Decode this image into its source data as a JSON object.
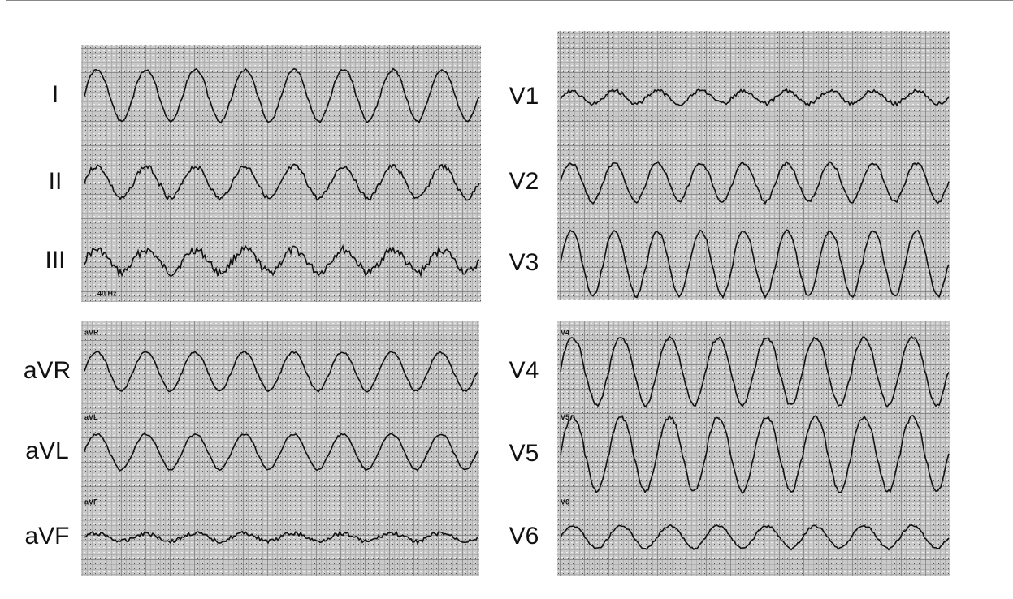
{
  "panels": [
    {
      "leads": [
        {
          "label": "I"
        },
        {
          "label": "II"
        },
        {
          "label": "III"
        }
      ],
      "marks": [
        "40 Hz"
      ]
    },
    {
      "leads": [
        {
          "label": "V1"
        },
        {
          "label": "V2"
        },
        {
          "label": "V3"
        }
      ],
      "marks": []
    },
    {
      "leads": [
        {
          "label": "aVR"
        },
        {
          "label": "aVL"
        },
        {
          "label": "aVF"
        }
      ],
      "marks": [
        "aVR",
        "aVL",
        "aVF"
      ]
    },
    {
      "leads": [
        {
          "label": "V4"
        },
        {
          "label": "V5"
        },
        {
          "label": "V6"
        }
      ],
      "marks": [
        "V4",
        "V5",
        "V6"
      ]
    }
  ]
}
